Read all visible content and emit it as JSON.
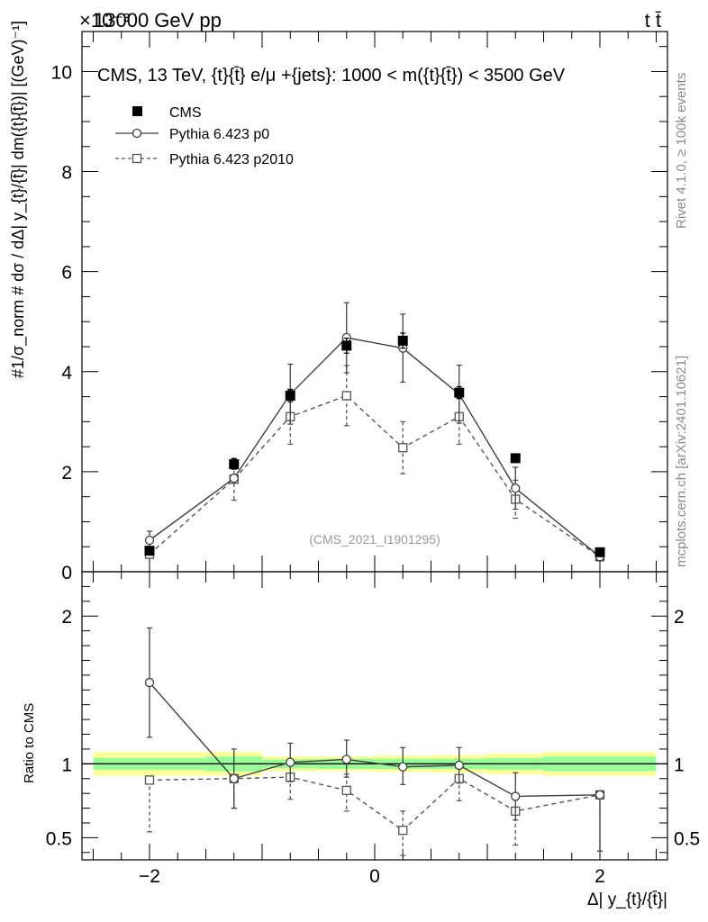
{
  "header": {
    "left_label": "13000 GeV pp",
    "exponent_label": "×10⁻³",
    "right_label": "t t̄",
    "plot_title": "CMS, 13 TeV, {t}{t̄} e/μ +{jets}: 1000 < m({t}{t̄}) < 3500 GeV",
    "watermark_rivet": "Rivet 4.1.0, ≥ 100k events",
    "watermark_site": "mcplots.cern.ch [arXiv:2401.10621]",
    "analysis_id": "(CMS_2021_I1901295)"
  },
  "legend": {
    "cms": "CMS",
    "p0": "Pythia 6.423 p0",
    "p2010": "Pythia 6.423 p2010"
  },
  "axes": {
    "main_ylabel": "#1/σ_norm # dσ / dΔ| y_{t}/{t̄}| dm({t}{t̄})| [(GeV)⁻¹]",
    "ratio_ylabel": "Ratio to CMS",
    "xlabel": "Δ| y_{t}/{t̄}|"
  },
  "chart_data": [
    {
      "type": "scatter",
      "panel": "main",
      "x": [
        -2.0,
        -1.25,
        -0.75,
        -0.25,
        0.25,
        0.75,
        1.25,
        2.0
      ],
      "x_bins": [
        [
          -2.5,
          -1.5
        ],
        [
          -1.5,
          -1.0
        ],
        [
          -1.0,
          -0.5
        ],
        [
          -0.5,
          0.0
        ],
        [
          0.0,
          0.5
        ],
        [
          0.5,
          1.0
        ],
        [
          1.0,
          1.5
        ],
        [
          1.5,
          2.5
        ]
      ],
      "series": [
        {
          "name": "CMS",
          "values": [
            0.42,
            2.15,
            3.52,
            4.52,
            4.62,
            3.58,
            2.27,
            0.39
          ],
          "errors": [
            0.03,
            0.1,
            0.12,
            0.15,
            0.15,
            0.12,
            0.08,
            0.03
          ]
        },
        {
          "name": "Pythia 6.423 p0",
          "values": [
            0.63,
            1.87,
            3.55,
            4.68,
            4.47,
            3.55,
            1.67,
            0.3
          ],
          "errors": [
            0.18,
            0.0,
            0.6,
            0.7,
            0.68,
            0.58,
            0.42,
            0.08
          ]
        },
        {
          "name": "Pythia 6.423 p2010",
          "values": [
            0.35,
            1.85,
            3.1,
            3.52,
            2.48,
            3.1,
            1.45,
            0.3
          ],
          "errors": [
            0.0,
            0.42,
            0.55,
            0.6,
            0.52,
            0.55,
            0.38,
            0.07
          ]
        }
      ],
      "title": "CMS, 13 TeV, {t}{t̄} e/μ +{jets}: 1000 < m({t}{t̄}) < 3500 GeV",
      "xlim": [
        -2.6,
        2.6
      ],
      "ylim": [
        0,
        10.8
      ],
      "yticks": [
        0,
        2,
        4,
        6,
        8,
        10
      ],
      "ytick_labels": [
        "0",
        "2",
        "4",
        "6",
        "8",
        "10"
      ]
    },
    {
      "type": "scatter",
      "panel": "ratio",
      "x": [
        -2.0,
        -1.25,
        -0.75,
        -0.25,
        0.25,
        0.75,
        1.25,
        2.0
      ],
      "x_bins": [
        [
          -2.5,
          -1.5
        ],
        [
          -1.5,
          -1.0
        ],
        [
          -1.0,
          -0.5
        ],
        [
          -0.5,
          0.0
        ],
        [
          0.0,
          0.5
        ],
        [
          0.5,
          1.0
        ],
        [
          1.0,
          1.5
        ],
        [
          1.5,
          2.5
        ]
      ],
      "series": [
        {
          "name": "Pythia 6.423 p0",
          "values": [
            1.55,
            0.9,
            1.01,
            1.03,
            0.98,
            0.99,
            0.78,
            0.79
          ],
          "err_low": [
            0.37,
            0.2,
            0.13,
            0.12,
            0.12,
            0.12,
            0.16,
            0.38
          ],
          "err_high": [
            0.37,
            0.2,
            0.13,
            0.13,
            0.13,
            0.12,
            0.16,
            0.0
          ]
        },
        {
          "name": "Pythia 6.423 p2010",
          "values": [
            0.89,
            0.9,
            0.91,
            0.82,
            0.55,
            0.9,
            0.68,
            0.79
          ],
          "err_low": [
            0.35,
            0.2,
            0.15,
            0.14,
            0.17,
            0.15,
            0.23,
            0.38
          ],
          "err_high": [
            0.0,
            0.0,
            0.0,
            0.11,
            0.13,
            0.0,
            0.0,
            0.0
          ]
        }
      ],
      "band_inner": [
        0.04,
        0.05,
        0.03,
        0.035,
        0.035,
        0.035,
        0.04,
        0.05
      ],
      "band_outer": [
        0.08,
        0.08,
        0.05,
        0.05,
        0.055,
        0.06,
        0.07,
        0.08
      ],
      "ylabel": "Ratio to CMS",
      "xlabel": "Δ| y_{t}/{t̄}|",
      "xlim": [
        -2.6,
        2.6
      ],
      "ylim": [
        0.35,
        2.3
      ],
      "yticks": [
        0.5,
        1,
        2
      ],
      "ytick_labels": [
        "0.5",
        "1",
        "2"
      ],
      "xticks": [
        -2,
        0,
        2
      ],
      "xtick_labels": [
        "−2",
        "0",
        "2"
      ]
    }
  ],
  "colors": {
    "cms": "#000000",
    "p0": "#404040",
    "p2010": "#555555",
    "band_inner": "#99ff99",
    "band_outer": "#ffff99",
    "watermark": "#8a8a8a"
  }
}
